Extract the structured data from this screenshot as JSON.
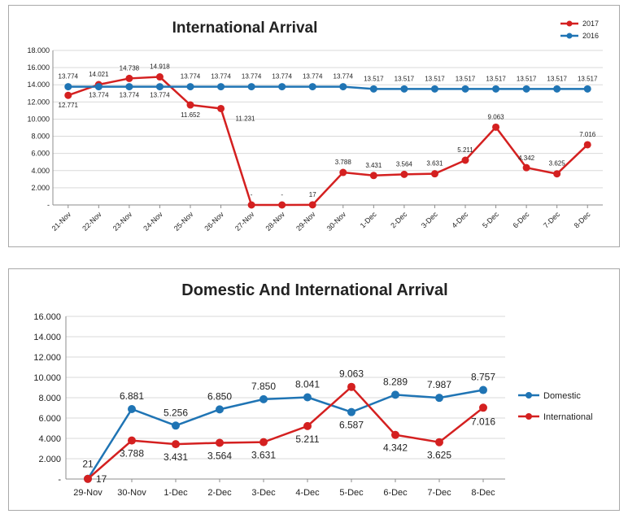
{
  "chart_data": [
    {
      "type": "line",
      "title": "International Arrival",
      "categories": [
        "21-Nov",
        "22-Nov",
        "23-Nov",
        "24-Nov",
        "25-Nov",
        "26-Nov",
        "27-Nov",
        "28-Nov",
        "29-Nov",
        "30-Nov",
        "1-Dec",
        "2-Dec",
        "3-Dec",
        "4-Dec",
        "5-Dec",
        "6-Dec",
        "7-Dec",
        "8-Dec"
      ],
      "yticks": [
        "-",
        "2.000",
        "4.000",
        "6.000",
        "8.000",
        "10.000",
        "12.000",
        "14.000",
        "16.000",
        "18.000"
      ],
      "ylim": [
        0,
        18000
      ],
      "legend_position": "top-right",
      "grid": true,
      "series": [
        {
          "name": "2017",
          "color": "#d42020",
          "values": [
            12771,
            14021,
            14738,
            14918,
            11652,
            11231,
            0,
            0,
            17,
            3788,
            3431,
            3564,
            3631,
            5211,
            9063,
            4342,
            3625,
            7016
          ],
          "labels": [
            "12.771",
            "14.021",
            "14.738",
            "14.918",
            "11.652",
            "11.231",
            "-",
            "-",
            "17",
            "3.788",
            "3.431",
            "3.564",
            "3.631",
            "5.211",
            "9.063",
            "4.342",
            "3.625",
            "7.016"
          ]
        },
        {
          "name": "2016",
          "color": "#1f74b4",
          "values": [
            13774,
            13774,
            13774,
            13774,
            13774,
            13774,
            13774,
            13774,
            13774,
            13774,
            13517,
            13517,
            13517,
            13517,
            13517,
            13517,
            13517,
            13517
          ],
          "labels": [
            "13.774",
            "13.774",
            "13.774",
            "13.774",
            "13.774",
            "13.774",
            "13.774",
            "13.774",
            "13.774",
            "13.774",
            "13.517",
            "13.517",
            "13.517",
            "13.517",
            "13.517",
            "13.517",
            "13.517",
            "13.517"
          ]
        }
      ]
    },
    {
      "type": "line",
      "title": "Domestic And International Arrival",
      "categories": [
        "29-Nov",
        "30-Nov",
        "1-Dec",
        "2-Dec",
        "3-Dec",
        "4-Dec",
        "5-Dec",
        "6-Dec",
        "7-Dec",
        "8-Dec"
      ],
      "yticks": [
        "-",
        "2.000",
        "4.000",
        "6.000",
        "8.000",
        "10.000",
        "12.000",
        "14.000",
        "16.000"
      ],
      "ylim": [
        0,
        16000
      ],
      "legend_position": "right",
      "grid": true,
      "series": [
        {
          "name": "Domestic",
          "color": "#1f74b4",
          "values": [
            21,
            6881,
            5256,
            6850,
            7850,
            8041,
            6587,
            8289,
            7987,
            8757
          ],
          "labels": [
            "21",
            "6.881",
            "5.256",
            "6.850",
            "7.850",
            "8.041",
            "6.587",
            "8.289",
            "7.987",
            "8.757"
          ]
        },
        {
          "name": "International",
          "color": "#d42020",
          "values": [
            17,
            3788,
            3431,
            3564,
            3631,
            5211,
            9063,
            4342,
            3625,
            7016
          ],
          "labels": [
            "17",
            "3.788",
            "3.431",
            "3.564",
            "3.631",
            "5.211",
            "9.063",
            "4.342",
            "3.625",
            "7.016"
          ]
        }
      ]
    }
  ]
}
